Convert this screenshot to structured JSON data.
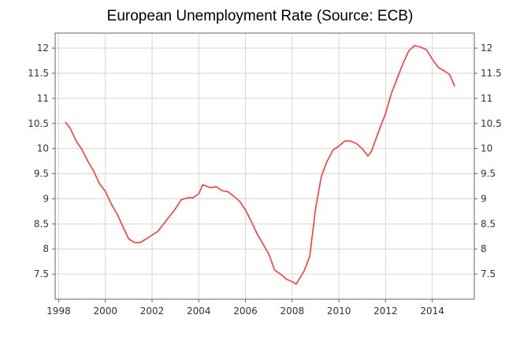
{
  "chart_data": {
    "type": "line",
    "title": "European Unemployment Rate (Source: ECB)",
    "xlabel": "",
    "ylabel": "",
    "xlim": [
      1997.85,
      2015.8
    ],
    "ylim": [
      7.0,
      12.3
    ],
    "x_ticks": [
      1998,
      2000,
      2002,
      2004,
      2006,
      2008,
      2010,
      2012,
      2014
    ],
    "x_tick_labels": [
      "1998",
      "2000",
      "2002",
      "2004",
      "2006",
      "2008",
      "2010",
      "2012",
      "2014"
    ],
    "y_ticks": [
      7.5,
      8,
      8.5,
      9,
      9.5,
      10,
      10.5,
      11,
      11.5,
      12
    ],
    "y_tick_labels": [
      "7.5",
      "8",
      "8.5",
      "9",
      "9.5",
      "10",
      "10.5",
      "11",
      "11.5",
      "12"
    ],
    "grid": true,
    "series": [
      {
        "color": "#ff3b3b",
        "x": [
          1998.3,
          1998.5,
          1998.75,
          1999.0,
          1999.25,
          1999.5,
          1999.75,
          2000.0,
          2000.25,
          2000.5,
          2000.75,
          2001.0,
          2001.25,
          2001.5,
          2001.75,
          2002.0,
          2002.25,
          2002.5,
          2002.75,
          2003.0,
          2003.25,
          2003.5,
          2003.75,
          2004.0,
          2004.17,
          2004.5,
          2004.75,
          2005.0,
          2005.25,
          2005.5,
          2005.75,
          2006.0,
          2006.25,
          2006.5,
          2006.75,
          2007.0,
          2007.25,
          2007.5,
          2007.75,
          2008.0,
          2008.17,
          2008.5,
          2008.75,
          2009.0,
          2009.25,
          2009.5,
          2009.75,
          2010.0,
          2010.25,
          2010.5,
          2010.75,
          2011.0,
          2011.25,
          2011.4,
          2011.75,
          2012.0,
          2012.25,
          2012.5,
          2012.75,
          2013.0,
          2013.25,
          2013.5,
          2013.75,
          2014.0,
          2014.25,
          2014.5,
          2014.75,
          2014.95
        ],
        "values": [
          10.52,
          10.4,
          10.15,
          9.98,
          9.75,
          9.55,
          9.3,
          9.15,
          8.9,
          8.7,
          8.45,
          8.2,
          8.13,
          8.13,
          8.2,
          8.28,
          8.35,
          8.5,
          8.65,
          8.8,
          8.98,
          9.02,
          9.02,
          9.1,
          9.28,
          9.22,
          9.24,
          9.16,
          9.14,
          9.05,
          8.95,
          8.78,
          8.55,
          8.3,
          8.1,
          7.9,
          7.58,
          7.5,
          7.4,
          7.35,
          7.3,
          7.55,
          7.85,
          8.8,
          9.45,
          9.75,
          9.97,
          10.05,
          10.15,
          10.15,
          10.1,
          10.0,
          9.85,
          9.95,
          10.4,
          10.7,
          11.1,
          11.4,
          11.7,
          11.95,
          12.05,
          12.02,
          11.97,
          11.78,
          11.62,
          11.55,
          11.47,
          11.25
        ]
      }
    ]
  }
}
